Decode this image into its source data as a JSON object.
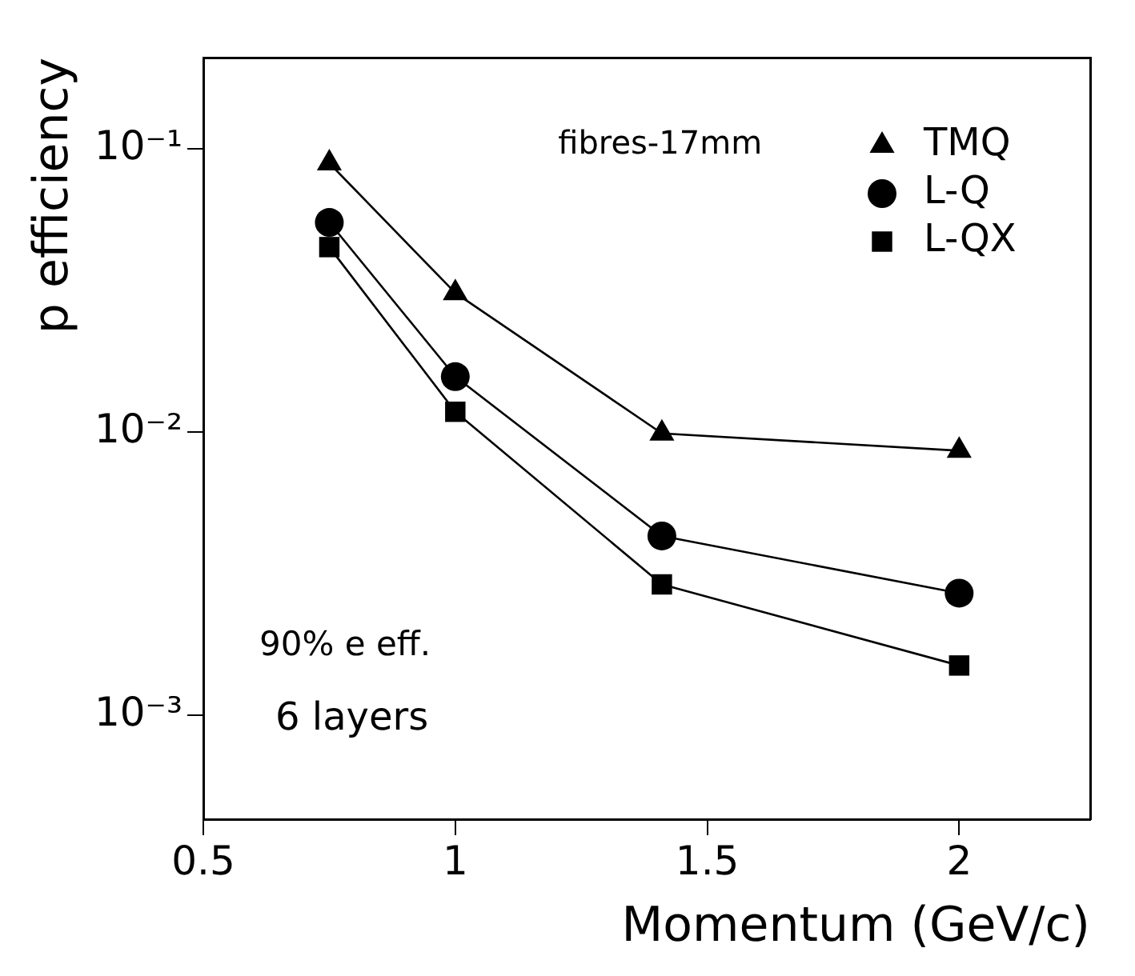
{
  "chart_data": {
    "type": "line",
    "xlabel": "Momentum (GeV/c)",
    "ylabel": "p efficiency",
    "x": [
      0.75,
      1,
      1.41,
      2
    ],
    "series": [
      {
        "name": "TMQ",
        "color": "#000000",
        "marker": "triangle",
        "values": [
          0.089,
          0.031,
          0.0099,
          0.0086
        ]
      },
      {
        "name": "L-Q",
        "color": "#000000",
        "marker": "circle",
        "values": [
          0.055,
          0.0157,
          0.0043,
          0.0027
        ]
      },
      {
        "name": "L-QX",
        "color": "#000000",
        "marker": "square",
        "values": [
          0.045,
          0.0118,
          0.0029,
          0.0015
        ]
      }
    ],
    "log": "y",
    "xlim": [
      0.5,
      2.26
    ],
    "xticks": [
      0.5,
      1,
      1.5,
      2
    ],
    "ylim": [
      0.00043,
      0.21
    ],
    "yticks": [
      {
        "value": 0.001,
        "label": "10⁻³"
      },
      {
        "value": 0.01,
        "label": "10⁻²"
      },
      {
        "value": 0.1,
        "label": "10⁻¹"
      }
    ],
    "grid": false,
    "legend": "top right",
    "line_style": "solid",
    "annotations": [
      "fibres-17mm",
      "90% e eff.",
      "6 layers"
    ]
  }
}
